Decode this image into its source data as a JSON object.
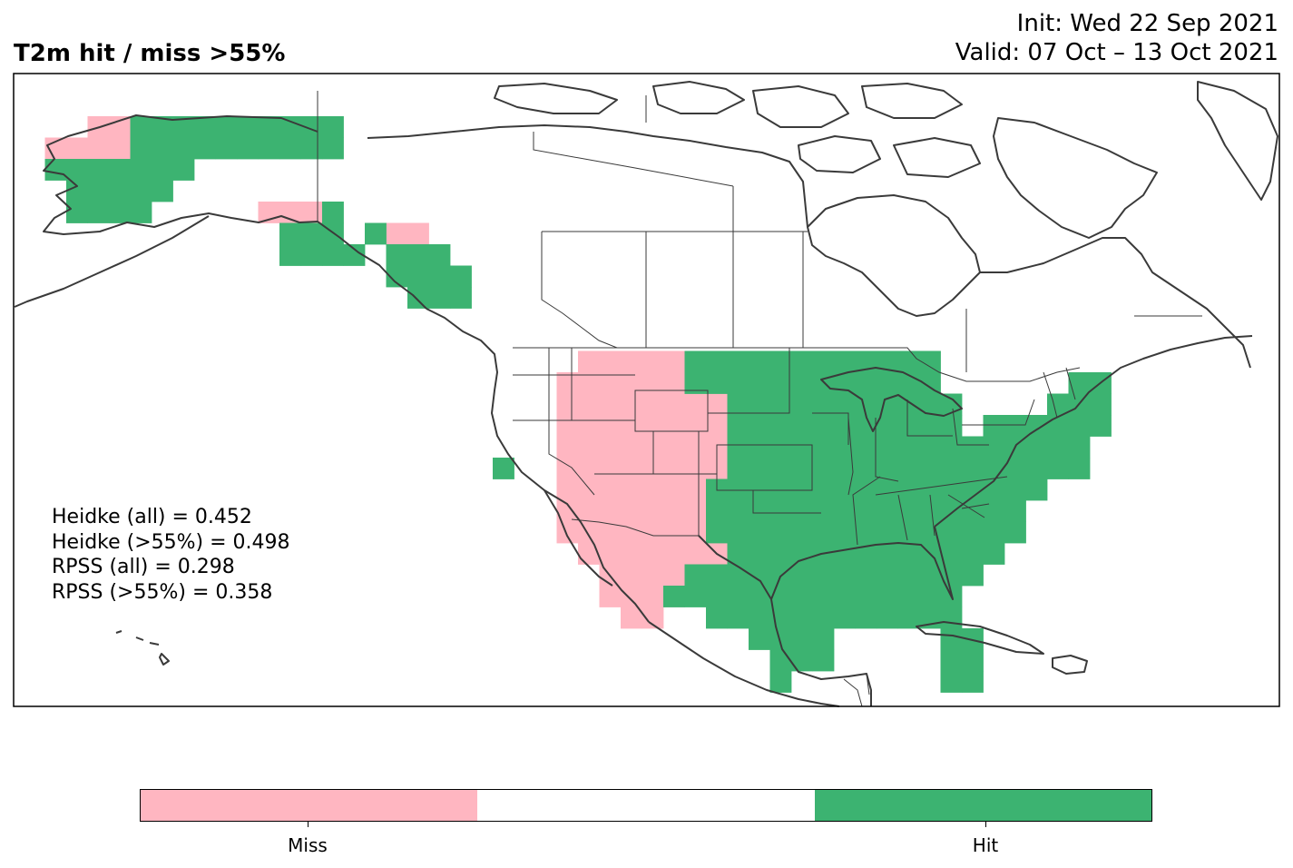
{
  "header": {
    "title": "T2m hit / miss  >55%",
    "init": "Init: Wed 22 Sep 2021",
    "valid": "Valid: 07 Oct – 13 Oct 2021"
  },
  "scores": [
    "Heidke (all) = 0.452",
    "Heidke (>55%) = 0.498",
    "RPSS (all) = 0.298",
    "RPSS (>55%) = 0.358"
  ],
  "colors": {
    "miss": "#ffb6c1",
    "none": "#ffffff",
    "hit": "#3cb371",
    "coast": "#3a3a3a"
  },
  "legend": {
    "miss_label": "Miss",
    "hit_label": "Hit"
  },
  "cells": {
    "miss": [
      [
        3,
        2
      ],
      [
        4,
        2
      ],
      [
        1,
        3
      ],
      [
        2,
        3
      ],
      [
        3,
        3
      ],
      [
        4,
        3
      ],
      [
        11,
        6
      ],
      [
        12,
        6
      ],
      [
        13,
        6
      ],
      [
        17,
        7
      ],
      [
        18,
        7
      ],
      [
        26,
        13
      ],
      [
        27,
        13
      ],
      [
        28,
        13
      ],
      [
        29,
        13
      ],
      [
        30,
        13
      ],
      [
        25,
        14
      ],
      [
        26,
        14
      ],
      [
        27,
        14
      ],
      [
        28,
        14
      ],
      [
        29,
        14
      ],
      [
        30,
        14
      ],
      [
        31,
        14
      ],
      [
        25,
        15
      ],
      [
        26,
        15
      ],
      [
        27,
        15
      ],
      [
        28,
        15
      ],
      [
        29,
        15
      ],
      [
        30,
        15
      ],
      [
        31,
        15
      ],
      [
        32,
        15
      ],
      [
        25,
        16
      ],
      [
        26,
        16
      ],
      [
        27,
        16
      ],
      [
        28,
        16
      ],
      [
        29,
        16
      ],
      [
        30,
        16
      ],
      [
        31,
        16
      ],
      [
        32,
        16
      ],
      [
        25,
        17
      ],
      [
        26,
        17
      ],
      [
        27,
        17
      ],
      [
        28,
        17
      ],
      [
        29,
        17
      ],
      [
        30,
        17
      ],
      [
        31,
        17
      ],
      [
        32,
        17
      ],
      [
        25,
        18
      ],
      [
        26,
        18
      ],
      [
        27,
        18
      ],
      [
        28,
        18
      ],
      [
        29,
        18
      ],
      [
        30,
        18
      ],
      [
        31,
        18
      ],
      [
        32,
        18
      ],
      [
        25,
        19
      ],
      [
        26,
        19
      ],
      [
        27,
        19
      ],
      [
        28,
        19
      ],
      [
        29,
        19
      ],
      [
        30,
        19
      ],
      [
        31,
        19
      ],
      [
        32,
        19
      ],
      [
        25,
        20
      ],
      [
        26,
        20
      ],
      [
        27,
        20
      ],
      [
        28,
        20
      ],
      [
        29,
        20
      ],
      [
        30,
        20
      ],
      [
        31,
        20
      ],
      [
        32,
        20
      ],
      [
        25,
        21
      ],
      [
        26,
        21
      ],
      [
        27,
        21
      ],
      [
        28,
        21
      ],
      [
        29,
        21
      ],
      [
        30,
        21
      ],
      [
        31,
        21
      ],
      [
        32,
        21
      ],
      [
        26,
        22
      ],
      [
        27,
        22
      ],
      [
        28,
        22
      ],
      [
        29,
        22
      ],
      [
        30,
        22
      ],
      [
        31,
        22
      ],
      [
        32,
        22
      ],
      [
        27,
        23
      ],
      [
        28,
        23
      ],
      [
        29,
        23
      ],
      [
        30,
        23
      ],
      [
        31,
        23
      ],
      [
        27,
        24
      ],
      [
        28,
        24
      ],
      [
        29,
        24
      ],
      [
        30,
        24
      ],
      [
        28,
        25
      ],
      [
        29,
        25
      ]
    ],
    "hit": [
      [
        5,
        2
      ],
      [
        6,
        2
      ],
      [
        7,
        2
      ],
      [
        8,
        2
      ],
      [
        9,
        2
      ],
      [
        10,
        2
      ],
      [
        11,
        2
      ],
      [
        12,
        2
      ],
      [
        13,
        2
      ],
      [
        14,
        2
      ],
      [
        5,
        3
      ],
      [
        6,
        3
      ],
      [
        7,
        3
      ],
      [
        8,
        3
      ],
      [
        9,
        3
      ],
      [
        10,
        3
      ],
      [
        11,
        3
      ],
      [
        12,
        3
      ],
      [
        13,
        3
      ],
      [
        14,
        3
      ],
      [
        1,
        4
      ],
      [
        2,
        4
      ],
      [
        3,
        4
      ],
      [
        4,
        4
      ],
      [
        5,
        4
      ],
      [
        6,
        4
      ],
      [
        7,
        4
      ],
      [
        2,
        5
      ],
      [
        3,
        5
      ],
      [
        4,
        5
      ],
      [
        5,
        5
      ],
      [
        6,
        5
      ],
      [
        2,
        6
      ],
      [
        3,
        6
      ],
      [
        4,
        6
      ],
      [
        5,
        6
      ],
      [
        14,
        6
      ],
      [
        16,
        7
      ],
      [
        12,
        7
      ],
      [
        13,
        7
      ],
      [
        14,
        7
      ],
      [
        17,
        8
      ],
      [
        18,
        8
      ],
      [
        19,
        8
      ],
      [
        12,
        8
      ],
      [
        13,
        8
      ],
      [
        14,
        8
      ],
      [
        15,
        8
      ],
      [
        17,
        9
      ],
      [
        18,
        9
      ],
      [
        19,
        9
      ],
      [
        20,
        9
      ],
      [
        18,
        10
      ],
      [
        19,
        10
      ],
      [
        20,
        10
      ],
      [
        31,
        13
      ],
      [
        32,
        13
      ],
      [
        33,
        13
      ],
      [
        34,
        13
      ],
      [
        35,
        13
      ],
      [
        36,
        13
      ],
      [
        37,
        13
      ],
      [
        38,
        13
      ],
      [
        39,
        13
      ],
      [
        40,
        13
      ],
      [
        41,
        13
      ],
      [
        42,
        13
      ],
      [
        31,
        14
      ],
      [
        32,
        14
      ],
      [
        33,
        14
      ],
      [
        34,
        14
      ],
      [
        35,
        14
      ],
      [
        36,
        14
      ],
      [
        37,
        14
      ],
      [
        38,
        14
      ],
      [
        39,
        14
      ],
      [
        40,
        14
      ],
      [
        41,
        14
      ],
      [
        42,
        14
      ],
      [
        49,
        14
      ],
      [
        50,
        14
      ],
      [
        33,
        15
      ],
      [
        34,
        15
      ],
      [
        35,
        15
      ],
      [
        36,
        15
      ],
      [
        37,
        15
      ],
      [
        38,
        15
      ],
      [
        39,
        15
      ],
      [
        40,
        15
      ],
      [
        41,
        15
      ],
      [
        42,
        15
      ],
      [
        43,
        15
      ],
      [
        48,
        15
      ],
      [
        49,
        15
      ],
      [
        50,
        15
      ],
      [
        33,
        16
      ],
      [
        34,
        16
      ],
      [
        35,
        16
      ],
      [
        36,
        16
      ],
      [
        37,
        16
      ],
      [
        38,
        16
      ],
      [
        39,
        16
      ],
      [
        40,
        16
      ],
      [
        41,
        16
      ],
      [
        42,
        16
      ],
      [
        43,
        16
      ],
      [
        45,
        16
      ],
      [
        46,
        16
      ],
      [
        47,
        16
      ],
      [
        48,
        16
      ],
      [
        49,
        16
      ],
      [
        50,
        16
      ],
      [
        33,
        17
      ],
      [
        34,
        17
      ],
      [
        35,
        17
      ],
      [
        36,
        17
      ],
      [
        37,
        17
      ],
      [
        38,
        17
      ],
      [
        39,
        17
      ],
      [
        40,
        17
      ],
      [
        41,
        17
      ],
      [
        42,
        17
      ],
      [
        43,
        17
      ],
      [
        44,
        17
      ],
      [
        45,
        17
      ],
      [
        46,
        17
      ],
      [
        47,
        17
      ],
      [
        48,
        17
      ],
      [
        49,
        17
      ],
      [
        22,
        18
      ],
      [
        33,
        18
      ],
      [
        34,
        18
      ],
      [
        35,
        18
      ],
      [
        36,
        18
      ],
      [
        37,
        18
      ],
      [
        38,
        18
      ],
      [
        39,
        18
      ],
      [
        40,
        18
      ],
      [
        41,
        18
      ],
      [
        42,
        18
      ],
      [
        43,
        18
      ],
      [
        44,
        18
      ],
      [
        45,
        18
      ],
      [
        46,
        18
      ],
      [
        47,
        18
      ],
      [
        48,
        18
      ],
      [
        49,
        18
      ],
      [
        32,
        19
      ],
      [
        33,
        19
      ],
      [
        34,
        19
      ],
      [
        35,
        19
      ],
      [
        36,
        19
      ],
      [
        37,
        19
      ],
      [
        38,
        19
      ],
      [
        39,
        19
      ],
      [
        40,
        19
      ],
      [
        41,
        19
      ],
      [
        42,
        19
      ],
      [
        43,
        19
      ],
      [
        44,
        19
      ],
      [
        45,
        19
      ],
      [
        46,
        19
      ],
      [
        47,
        19
      ],
      [
        32,
        20
      ],
      [
        33,
        20
      ],
      [
        34,
        20
      ],
      [
        35,
        20
      ],
      [
        36,
        20
      ],
      [
        37,
        20
      ],
      [
        38,
        20
      ],
      [
        39,
        20
      ],
      [
        40,
        20
      ],
      [
        41,
        20
      ],
      [
        42,
        20
      ],
      [
        43,
        20
      ],
      [
        44,
        20
      ],
      [
        45,
        20
      ],
      [
        46,
        20
      ],
      [
        32,
        21
      ],
      [
        33,
        21
      ],
      [
        34,
        21
      ],
      [
        35,
        21
      ],
      [
        36,
        21
      ],
      [
        37,
        21
      ],
      [
        38,
        21
      ],
      [
        39,
        21
      ],
      [
        40,
        21
      ],
      [
        41,
        21
      ],
      [
        42,
        21
      ],
      [
        43,
        21
      ],
      [
        44,
        21
      ],
      [
        45,
        21
      ],
      [
        46,
        21
      ],
      [
        33,
        22
      ],
      [
        34,
        22
      ],
      [
        35,
        22
      ],
      [
        36,
        22
      ],
      [
        37,
        22
      ],
      [
        38,
        22
      ],
      [
        39,
        22
      ],
      [
        40,
        22
      ],
      [
        41,
        22
      ],
      [
        42,
        22
      ],
      [
        43,
        22
      ],
      [
        44,
        22
      ],
      [
        45,
        22
      ],
      [
        31,
        23
      ],
      [
        32,
        23
      ],
      [
        33,
        23
      ],
      [
        34,
        23
      ],
      [
        35,
        23
      ],
      [
        36,
        23
      ],
      [
        37,
        23
      ],
      [
        38,
        23
      ],
      [
        39,
        23
      ],
      [
        40,
        23
      ],
      [
        41,
        23
      ],
      [
        42,
        23
      ],
      [
        43,
        23
      ],
      [
        44,
        23
      ],
      [
        30,
        24
      ],
      [
        31,
        24
      ],
      [
        32,
        24
      ],
      [
        33,
        24
      ],
      [
        34,
        24
      ],
      [
        35,
        24
      ],
      [
        36,
        24
      ],
      [
        37,
        24
      ],
      [
        38,
        24
      ],
      [
        39,
        24
      ],
      [
        40,
        24
      ],
      [
        41,
        24
      ],
      [
        42,
        24
      ],
      [
        43,
        24
      ],
      [
        32,
        25
      ],
      [
        33,
        25
      ],
      [
        34,
        25
      ],
      [
        35,
        25
      ],
      [
        36,
        25
      ],
      [
        37,
        25
      ],
      [
        38,
        25
      ],
      [
        39,
        25
      ],
      [
        40,
        25
      ],
      [
        41,
        25
      ],
      [
        42,
        25
      ],
      [
        43,
        25
      ],
      [
        34,
        26
      ],
      [
        35,
        26
      ],
      [
        36,
        26
      ],
      [
        37,
        26
      ],
      [
        43,
        26
      ],
      [
        44,
        26
      ],
      [
        35,
        27
      ],
      [
        36,
        27
      ],
      [
        37,
        27
      ],
      [
        43,
        27
      ],
      [
        44,
        27
      ],
      [
        35,
        28
      ],
      [
        43,
        28
      ],
      [
        44,
        28
      ]
    ]
  }
}
